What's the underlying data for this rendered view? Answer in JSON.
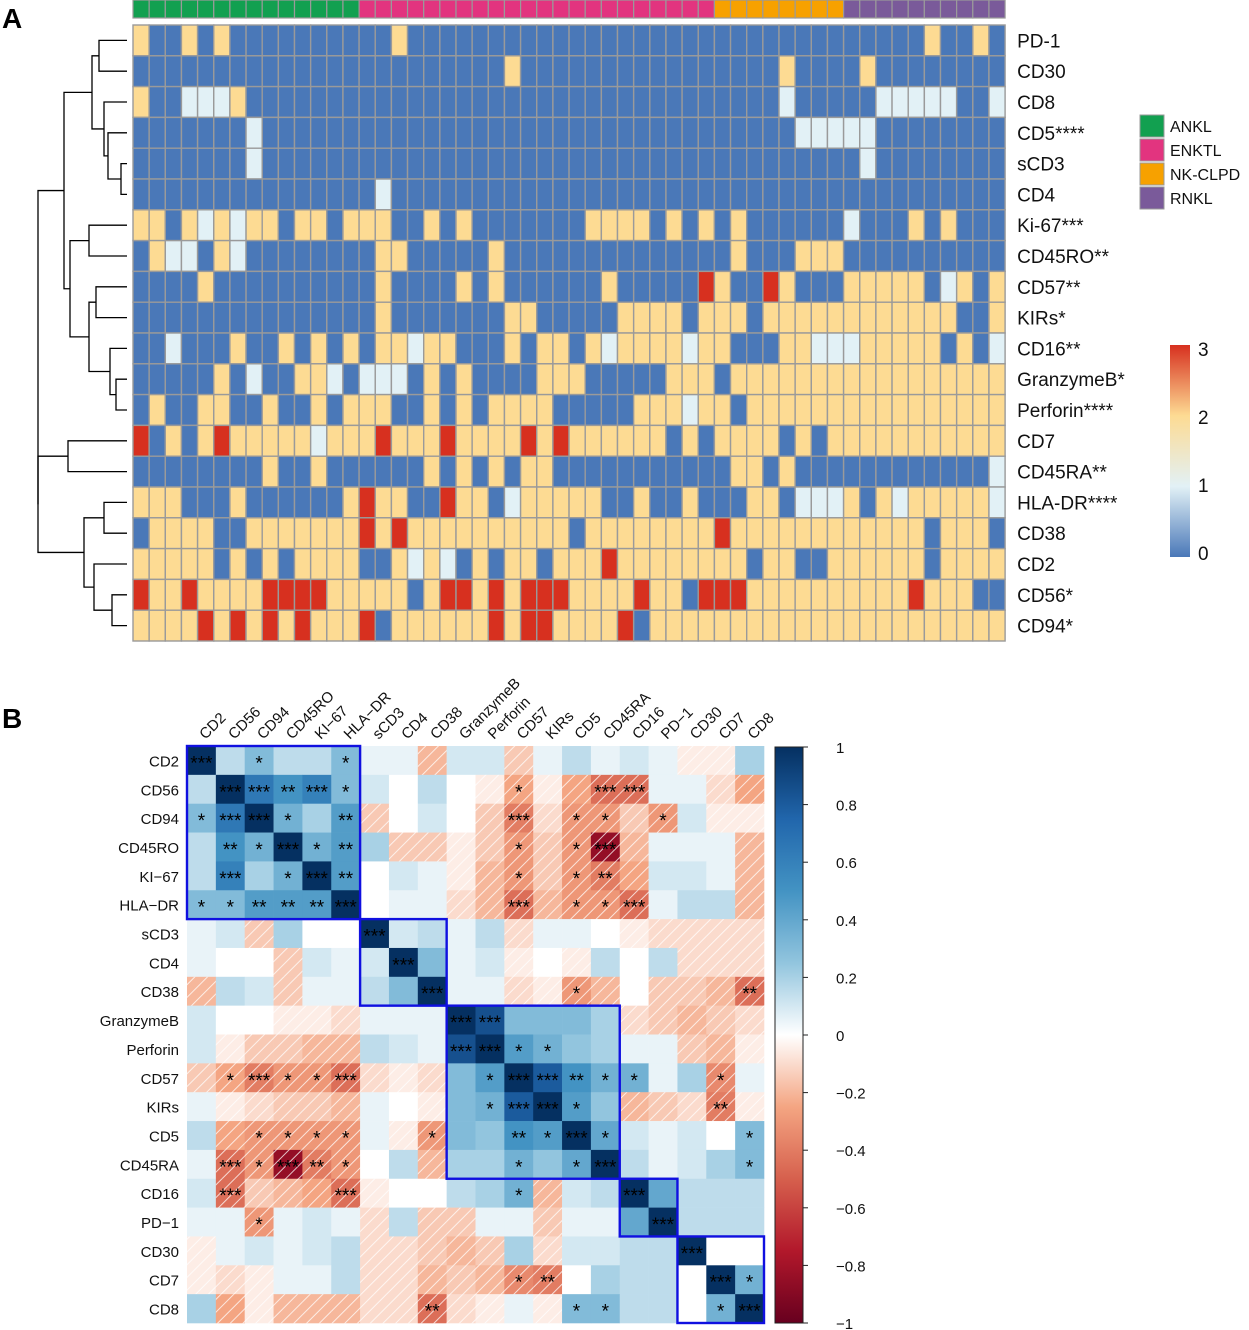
{
  "panel_a": {
    "label": "A"
  },
  "panel_b": {
    "label": "B"
  },
  "chart_data": [
    {
      "type": "heatmap",
      "title": "",
      "panel": "A",
      "rows": [
        "PD-1",
        "CD30",
        "CD8",
        "CD5****",
        "sCD3",
        "CD4",
        "Ki-67***",
        "CD45RO**",
        "CD57**",
        "KIRs*",
        "CD16**",
        "GranzymeB*",
        "Perforin****",
        "CD7",
        "CD45RA**",
        "HLA-DR****",
        "CD38",
        "CD2",
        "CD56*",
        "CD94*"
      ],
      "column_groups": [
        {
          "name": "ANKL",
          "count": 14,
          "color": "#12A050"
        },
        {
          "name": "ENKTL",
          "count": 22,
          "color": "#E2347F"
        },
        {
          "name": "NK-CLPD",
          "count": 8,
          "color": "#F7A100"
        },
        {
          "name": "RNKL",
          "count": 10,
          "color": "#7A5A9A"
        }
      ],
      "values": [
        "200202000000000020000000000000000000000000000000020020",
        "000000000000000000000002000000000000000020000200000000",
        "200111200000000000000000000000000000000010000011111001",
        "000000010000000000000000000000000000000001111100000000",
        "000000010000000000000000000000000000000000000100000000",
        "000000000000000100000000000000000000000000000000000000",
        "220212122022022200202000000022220202020000001000202000",
        "021102100000000220000020000000000000020002220000000000",
        "000020000000000200002020000002000003200320002222201202",
        "000000000000000200000002200000222202220222222222222002",
        "001000200202020221220002022021222212200022111222220201",
        "000002010022101110202000022200000222022222222222222222",
        "020022002002022200202022220000022212202222222222222222",
        "302023222221222322232222323222222020222202022222222222",
        "000000002002000000202020220000000000022020000000000001",
        "222000200000023220032201222220020020002201112021222221",
        "022220022222223232222222222022222222322222222222202220",
        "222220202022220021210202202223222222220220022222202222",
        "322322223333222220233232333222232203332222222222322200",
        "222232323232223022222232332222302222222222222222222222"
      ],
      "legend": {
        "min": 0,
        "max": 3,
        "ticks": [
          0,
          1,
          2,
          3
        ]
      },
      "colors": {
        "0": "#4A78B8",
        "1": "#E2F1F6",
        "2": "#FDDB93",
        "3": "#D7301F"
      }
    },
    {
      "type": "heatmap",
      "title": "",
      "panel": "B",
      "subtype": "correlation",
      "labels": [
        "CD2",
        "CD56",
        "CD94",
        "CD45RO",
        "KI−67",
        "HLA−DR",
        "sCD3",
        "CD4",
        "CD38",
        "GranzymeB",
        "Perforin",
        "CD57",
        "KIRs",
        "CD5",
        "CD45RA",
        "CD16",
        "PD−1",
        "CD30",
        "CD7",
        "CD8"
      ],
      "matrix": [
        [
          1.0,
          0.15,
          0.3,
          0.15,
          0.15,
          0.3,
          0.05,
          0.05,
          -0.2,
          0.1,
          0.1,
          -0.15,
          0.05,
          0.15,
          0.05,
          0.1,
          0.05,
          -0.05,
          -0.05,
          0.2
        ],
        [
          0.15,
          1.0,
          0.65,
          0.5,
          0.6,
          0.3,
          0.1,
          0.0,
          0.15,
          0.0,
          -0.05,
          -0.25,
          -0.05,
          -0.25,
          -0.45,
          -0.45,
          0.05,
          0.05,
          -0.1,
          -0.25
        ],
        [
          0.3,
          0.65,
          1.0,
          0.35,
          0.2,
          0.45,
          -0.15,
          0.0,
          0.1,
          0.0,
          -0.15,
          -0.4,
          -0.1,
          -0.3,
          -0.3,
          -0.15,
          -0.3,
          0.1,
          -0.05,
          -0.05
        ],
        [
          0.15,
          0.5,
          0.35,
          1.0,
          0.35,
          0.45,
          0.2,
          -0.15,
          -0.15,
          -0.05,
          -0.15,
          -0.3,
          -0.15,
          -0.3,
          -0.85,
          -0.2,
          0.05,
          0.05,
          0.05,
          -0.2
        ],
        [
          0.15,
          0.6,
          0.2,
          0.35,
          1.0,
          0.45,
          0.0,
          0.1,
          0.05,
          -0.05,
          -0.2,
          -0.3,
          -0.15,
          -0.3,
          -0.4,
          -0.25,
          0.1,
          0.1,
          0.05,
          -0.2
        ],
        [
          0.3,
          0.3,
          0.45,
          0.45,
          0.45,
          1.0,
          0.0,
          0.05,
          0.05,
          -0.1,
          -0.2,
          -0.45,
          -0.2,
          -0.3,
          -0.3,
          -0.45,
          0.05,
          0.15,
          0.15,
          -0.2
        ],
        [
          0.05,
          0.1,
          -0.15,
          0.2,
          0.0,
          0.0,
          1.0,
          0.1,
          0.15,
          0.05,
          0.15,
          -0.1,
          0.05,
          0.05,
          0.0,
          -0.05,
          -0.1,
          -0.1,
          -0.1,
          -0.1
        ],
        [
          0.05,
          0.0,
          0.0,
          -0.15,
          0.1,
          0.05,
          0.1,
          1.0,
          0.3,
          0.05,
          0.1,
          -0.05,
          0.0,
          -0.05,
          0.15,
          0.0,
          0.15,
          -0.1,
          -0.1,
          -0.1
        ],
        [
          -0.2,
          0.15,
          0.1,
          -0.15,
          0.05,
          0.05,
          0.15,
          0.3,
          1.0,
          0.05,
          0.05,
          -0.1,
          -0.05,
          -0.3,
          -0.2,
          0.0,
          -0.15,
          -0.15,
          -0.2,
          -0.45
        ],
        [
          0.1,
          0.0,
          0.0,
          -0.05,
          -0.05,
          -0.1,
          0.05,
          0.05,
          0.05,
          1.0,
          0.85,
          0.3,
          0.3,
          0.3,
          0.2,
          -0.1,
          -0.15,
          -0.2,
          -0.15,
          -0.1
        ],
        [
          0.1,
          -0.05,
          -0.15,
          -0.15,
          -0.2,
          -0.2,
          0.15,
          0.1,
          0.05,
          0.85,
          1.0,
          0.45,
          0.35,
          0.25,
          0.2,
          0.05,
          0.05,
          -0.15,
          -0.2,
          -0.05
        ],
        [
          -0.15,
          -0.25,
          -0.4,
          -0.3,
          -0.3,
          -0.45,
          -0.1,
          -0.05,
          -0.1,
          0.3,
          0.45,
          1.0,
          0.8,
          0.5,
          0.35,
          0.35,
          0.05,
          0.2,
          -0.35,
          0.05
        ],
        [
          0.05,
          -0.05,
          -0.1,
          -0.15,
          -0.15,
          -0.2,
          0.05,
          0.0,
          -0.05,
          0.3,
          0.35,
          0.8,
          1.0,
          0.45,
          0.25,
          -0.2,
          -0.15,
          -0.1,
          -0.4,
          -0.05
        ],
        [
          0.15,
          -0.25,
          -0.3,
          -0.3,
          -0.3,
          -0.3,
          0.05,
          -0.05,
          -0.3,
          0.3,
          0.25,
          0.5,
          0.45,
          1.0,
          0.4,
          0.1,
          0.05,
          0.1,
          0.0,
          0.3
        ],
        [
          0.05,
          -0.45,
          -0.3,
          -0.85,
          -0.4,
          -0.3,
          0.0,
          0.15,
          -0.2,
          0.2,
          0.2,
          0.35,
          0.25,
          0.4,
          1.0,
          0.15,
          0.05,
          0.1,
          0.2,
          0.3
        ],
        [
          0.1,
          -0.45,
          -0.15,
          -0.2,
          -0.25,
          -0.45,
          -0.05,
          0.0,
          0.0,
          0.15,
          0.2,
          0.35,
          -0.2,
          0.1,
          0.15,
          1.0,
          0.4,
          0.15,
          0.15,
          0.15
        ],
        [
          0.05,
          0.05,
          -0.3,
          0.05,
          0.1,
          0.05,
          -0.1,
          0.15,
          -0.15,
          -0.15,
          0.05,
          0.05,
          -0.15,
          0.05,
          0.05,
          0.4,
          1.0,
          0.15,
          0.15,
          0.15
        ],
        [
          -0.05,
          0.05,
          0.1,
          0.05,
          0.1,
          0.15,
          -0.1,
          -0.1,
          -0.15,
          -0.2,
          -0.15,
          0.2,
          -0.1,
          0.1,
          0.1,
          0.15,
          0.15,
          1.0,
          0.0,
          0.0
        ],
        [
          -0.05,
          -0.1,
          -0.05,
          0.05,
          0.05,
          0.15,
          -0.1,
          -0.1,
          -0.2,
          -0.15,
          -0.2,
          -0.35,
          -0.4,
          0.0,
          0.2,
          0.15,
          0.15,
          0.0,
          1.0,
          0.35
        ],
        [
          0.2,
          -0.25,
          -0.05,
          -0.2,
          -0.2,
          -0.2,
          -0.1,
          -0.1,
          -0.45,
          -0.1,
          -0.05,
          0.05,
          -0.05,
          0.3,
          0.3,
          0.15,
          0.15,
          0.0,
          0.35,
          1.0
        ]
      ],
      "significance": [
        [
          "***",
          "",
          "*",
          "",
          "",
          "*",
          "",
          "",
          "",
          "",
          "",
          "",
          "",
          "",
          "",
          "",
          "",
          "",
          "",
          ""
        ],
        [
          "",
          "***",
          "***",
          "**",
          "***",
          "*",
          "",
          "",
          "",
          "",
          "",
          "*",
          "",
          "",
          "***",
          "***",
          "",
          "",
          "",
          ""
        ],
        [
          "*",
          "***",
          "***",
          "*",
          "",
          "**",
          "",
          "",
          "",
          "",
          "",
          "***",
          "",
          "*",
          "*",
          "",
          "*",
          "",
          "",
          ""
        ],
        [
          "",
          "**",
          "*",
          "***",
          "*",
          "**",
          "",
          "",
          "",
          "",
          "",
          "*",
          "",
          "*",
          "***",
          "",
          "",
          "",
          "",
          ""
        ],
        [
          "",
          "***",
          "",
          "*",
          "***",
          "**",
          "",
          "",
          "",
          "",
          "",
          "*",
          "",
          "*",
          "**",
          "",
          "",
          "",
          "",
          ""
        ],
        [
          "*",
          "*",
          "**",
          "**",
          "**",
          "***",
          "",
          "",
          "",
          "",
          "",
          "***",
          "",
          "*",
          "*",
          "***",
          "",
          "",
          "",
          ""
        ],
        [
          "",
          "",
          "",
          "",
          "",
          "",
          "***",
          "",
          "",
          "",
          "",
          "",
          "",
          "",
          "",
          "",
          "",
          "",
          "",
          ""
        ],
        [
          "",
          "",
          "",
          "",
          "",
          "",
          "",
          "***",
          "",
          "",
          "",
          "",
          "",
          "",
          "",
          "",
          "",
          "",
          "",
          ""
        ],
        [
          "",
          "",
          "",
          "",
          "",
          "",
          "",
          "",
          "***",
          "",
          "",
          "",
          "",
          "*",
          "",
          "",
          "",
          "",
          "",
          "**"
        ],
        [
          "",
          "",
          "",
          "",
          "",
          "",
          "",
          "",
          "",
          "***",
          "***",
          "",
          "",
          "",
          "",
          "",
          "",
          "",
          "",
          ""
        ],
        [
          "",
          "",
          "",
          "",
          "",
          "",
          "",
          "",
          "",
          "***",
          "***",
          "*",
          "*",
          "",
          "",
          "",
          "",
          "",
          "",
          ""
        ],
        [
          "",
          "*",
          "***",
          "*",
          "*",
          "***",
          "",
          "",
          "",
          "",
          "*",
          "***",
          "***",
          "**",
          "*",
          "*",
          "",
          "",
          "*",
          ""
        ],
        [
          "",
          "",
          "",
          "",
          "",
          "",
          "",
          "",
          "",
          "",
          "*",
          "***",
          "***",
          "*",
          "",
          "",
          "",
          "",
          "**",
          ""
        ],
        [
          "",
          "",
          "*",
          "*",
          "*",
          "*",
          "",
          "",
          "*",
          "",
          "",
          "**",
          "*",
          "***",
          "*",
          "",
          "",
          "",
          "",
          "*"
        ],
        [
          "",
          "***",
          "*",
          "***",
          "**",
          "*",
          "",
          "",
          "",
          "",
          "",
          "*",
          "",
          "*",
          "***",
          "",
          "",
          "",
          "",
          "*"
        ],
        [
          "",
          "***",
          "",
          "",
          "",
          "***",
          "",
          "",
          "",
          "",
          "",
          "*",
          "",
          "",
          "",
          "***",
          "",
          "",
          "",
          ""
        ],
        [
          "",
          "",
          "*",
          "",
          "",
          "",
          "",
          "",
          "",
          "",
          "",
          "",
          "",
          "",
          "",
          "",
          "***",
          "",
          "",
          ""
        ],
        [
          "",
          "",
          "",
          "",
          "",
          "",
          "",
          "",
          "",
          "",
          "",
          "",
          "",
          "",
          "",
          "",
          "",
          "***",
          "",
          ""
        ],
        [
          "",
          "",
          "",
          "",
          "",
          "",
          "",
          "",
          "",
          "",
          "",
          "*",
          "**",
          "",
          "",
          "",
          "",
          "",
          "***",
          "*"
        ],
        [
          "",
          "",
          "",
          "",
          "",
          "",
          "",
          "",
          "**",
          "",
          "",
          "",
          "",
          "*",
          "*",
          "",
          "",
          "",
          "*",
          "***"
        ]
      ],
      "clusters": [
        [
          0,
          5
        ],
        [
          6,
          8
        ],
        [
          9,
          14
        ],
        [
          15,
          16
        ],
        [
          17,
          19
        ]
      ],
      "legend": {
        "min": -1,
        "max": 1,
        "ticks": [
          "1",
          "0.8",
          "0.6",
          "0.4",
          "0.2",
          "0",
          "−0.2",
          "−0.4",
          "−0.6",
          "−0.8",
          "−1"
        ]
      }
    }
  ]
}
